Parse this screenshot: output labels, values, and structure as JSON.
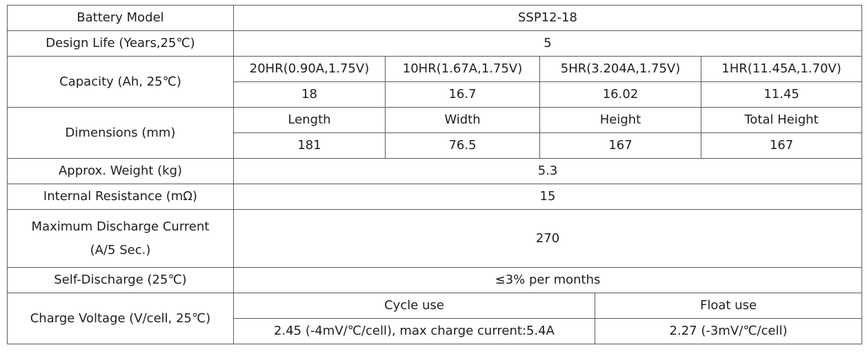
{
  "table": {
    "rows": [
      [
        "Battery Model",
        "SSP12-18"
      ],
      [
        "Design Life (Years,25℃)",
        5
      ],
      [
        "Capacity (Ah, 25℃)",
        "20HR(0.90A,1.75V)",
        "10HR(1.67A,1.75V)",
        "5HR(3.204A,1.75V)",
        "1HR(11.45A,1.70V)"
      ],
      [
        18,
        16.7,
        16.02,
        11.45
      ],
      [
        "Dimensions (mm)",
        "Length",
        "Width",
        "Height",
        "Total Height"
      ],
      [
        181,
        76.5,
        167,
        167
      ],
      [
        "Approx. Weight (kg)",
        5.3
      ],
      [
        "Internal Resistance (mΩ)",
        15
      ],
      [
        "Maximum Discharge Current (A/5 Sec.)",
        270
      ],
      [
        "Self-Discharge (25℃)",
        "≤3% per months"
      ],
      [
        "Charge Voltage (V/cell, 25℃)",
        "Cycle use",
        "Float use"
      ],
      [
        "2.45 (-4mV/℃/cell), max charge current:5.4A",
        "2.27 (-3mV/℃/cell)"
      ]
    ]
  }
}
